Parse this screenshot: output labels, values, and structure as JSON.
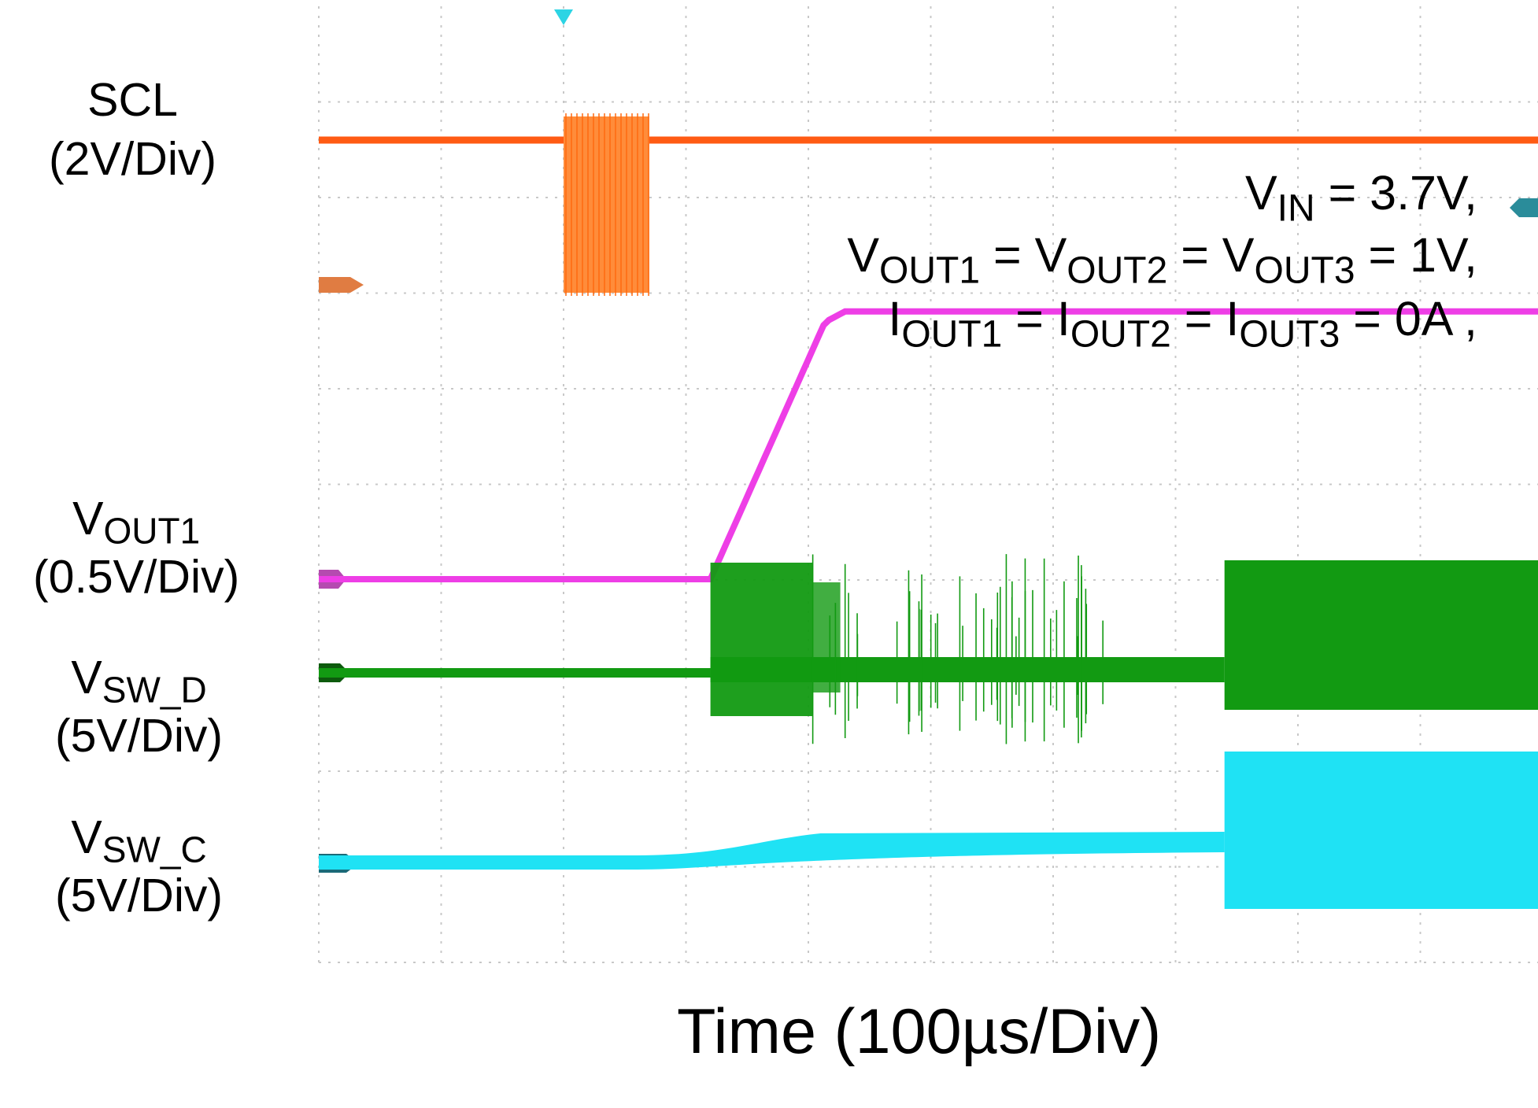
{
  "chart_data": {
    "type": "line",
    "title": "",
    "xlabel": "Time (100µs/Div)",
    "x_div_count": 10,
    "y_div_count": 10,
    "grid": true,
    "trigger_marker_div": 2,
    "channels": [
      {
        "name": "SCL",
        "scale": "(2V/Div)",
        "color": "#ff5b14",
        "description_values": "idle high; I2C clock burst",
        "burst_start_div": 2.0,
        "burst_end_div": 2.7
      },
      {
        "name_main": "V",
        "name_sub": "OUT1",
        "scale": "(0.5V/Div)",
        "color": "#ee3ee6",
        "ramp_start_div": 3.2,
        "ramp_end_div": 4.3,
        "rise_divs": 2.0
      },
      {
        "name_main": "V",
        "name_sub": "SW_D",
        "scale": "(5V/Div)",
        "color": "#129a12",
        "switching_start_div": 3.2,
        "full_switching_start_div": 7.4
      },
      {
        "name_main": "V",
        "name_sub": "SW_C",
        "scale": "(5V/Div)",
        "color": "#1fe2f4",
        "switching_start_div": 7.4
      }
    ],
    "conditions": {
      "line1": {
        "v_main": "V",
        "v_sub": "IN",
        "rest": " = 3.7V,"
      },
      "line2": {
        "a": "V",
        "a_sub": "OUT1",
        "b": " = V",
        "b_sub": "OUT2",
        "c": " = V",
        "c_sub": "OUT3",
        "rest": " = 1V,"
      },
      "line3": {
        "a": "I",
        "a_sub": "OUT1",
        "b": " = I",
        "b_sub": "OUT2",
        "c": " = I",
        "c_sub": "OUT3",
        "rest": " = 0A ,"
      }
    }
  }
}
